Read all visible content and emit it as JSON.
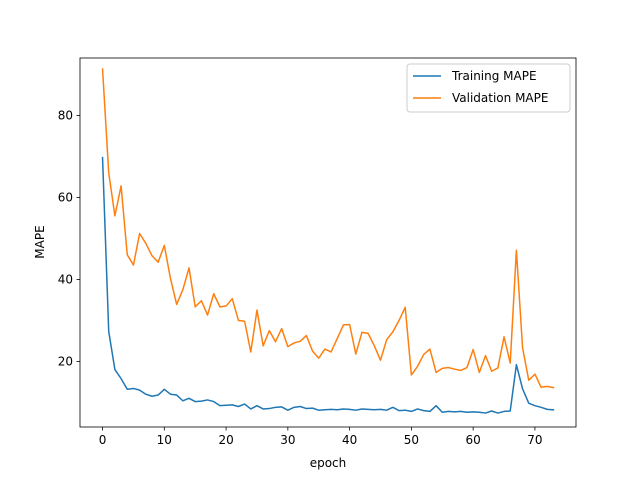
{
  "chart_data": {
    "type": "line",
    "title": "",
    "xlabel": "epoch",
    "ylabel": "MAPE",
    "xlim": [
      -3.65,
      76.65
    ],
    "ylim": [
      4,
      94
    ],
    "xticks": [
      0,
      10,
      20,
      30,
      40,
      50,
      60,
      70
    ],
    "yticks": [
      20,
      40,
      60,
      80
    ],
    "grid": false,
    "legend_position": "top-right",
    "series": [
      {
        "name": "Training MAPE",
        "color": "#1f77b4",
        "x": [
          0,
          1,
          2,
          3,
          4,
          5,
          6,
          7,
          8,
          9,
          10,
          11,
          12,
          13,
          14,
          15,
          16,
          17,
          18,
          19,
          20,
          21,
          22,
          23,
          24,
          25,
          26,
          27,
          28,
          29,
          30,
          31,
          32,
          33,
          34,
          35,
          36,
          37,
          38,
          39,
          40,
          41,
          42,
          43,
          44,
          45,
          46,
          47,
          48,
          49,
          50,
          51,
          52,
          53,
          54,
          55,
          56,
          57,
          58,
          59,
          60,
          61,
          62,
          63,
          64,
          65,
          66,
          67,
          68,
          69,
          70,
          71,
          72,
          73
        ],
        "values": [
          69.7,
          27.3,
          18.0,
          15.8,
          13.2,
          13.4,
          13.0,
          12.0,
          11.5,
          11.8,
          13.2,
          12.0,
          11.8,
          10.4,
          11.0,
          10.2,
          10.3,
          10.6,
          10.2,
          9.2,
          9.3,
          9.4,
          9.0,
          9.6,
          8.4,
          9.2,
          8.4,
          8.5,
          8.8,
          8.9,
          8.1,
          8.8,
          9.0,
          8.5,
          8.6,
          8.1,
          8.2,
          8.3,
          8.2,
          8.4,
          8.3,
          8.1,
          8.4,
          8.3,
          8.2,
          8.3,
          8.1,
          8.8,
          8.0,
          8.1,
          7.8,
          8.4,
          8.0,
          7.8,
          9.2,
          7.6,
          7.8,
          7.7,
          7.8,
          7.6,
          7.7,
          7.6,
          7.4,
          7.9,
          7.4,
          7.8,
          7.9,
          19.2,
          13.3,
          9.8,
          9.2,
          8.8,
          8.3,
          8.2
        ]
      },
      {
        "name": "Validation MAPE",
        "color": "#ff7f0e",
        "x": [
          0,
          1,
          2,
          3,
          4,
          5,
          6,
          7,
          8,
          9,
          10,
          11,
          12,
          13,
          14,
          15,
          16,
          17,
          18,
          19,
          20,
          21,
          22,
          23,
          24,
          25,
          26,
          27,
          28,
          29,
          30,
          31,
          32,
          33,
          34,
          35,
          36,
          37,
          38,
          39,
          40,
          41,
          42,
          43,
          44,
          45,
          46,
          47,
          48,
          49,
          50,
          51,
          52,
          53,
          54,
          55,
          56,
          57,
          58,
          59,
          60,
          61,
          62,
          63,
          64,
          65,
          66,
          67,
          68,
          69,
          70,
          71,
          72,
          73
        ],
        "values": [
          91.3,
          66.0,
          55.5,
          62.8,
          46.0,
          43.5,
          51.2,
          48.8,
          45.8,
          44.2,
          48.3,
          40.2,
          33.9,
          37.5,
          42.8,
          33.3,
          34.8,
          31.3,
          36.5,
          33.3,
          33.5,
          35.3,
          30.0,
          29.8,
          22.3,
          32.5,
          23.8,
          27.5,
          24.8,
          28.0,
          23.6,
          24.5,
          24.9,
          26.3,
          22.5,
          20.8,
          23.0,
          22.3,
          25.6,
          28.9,
          29.0,
          21.8,
          27.1,
          26.8,
          23.8,
          20.3,
          25.3,
          27.2,
          30.0,
          33.2,
          16.7,
          18.8,
          21.7,
          23.0,
          17.3,
          18.3,
          18.5,
          18.1,
          17.8,
          18.5,
          22.9,
          17.3,
          21.4,
          17.6,
          18.4,
          26.0,
          19.6,
          47.1,
          23.3,
          15.4,
          16.9,
          13.7,
          13.9,
          13.6
        ]
      }
    ]
  }
}
